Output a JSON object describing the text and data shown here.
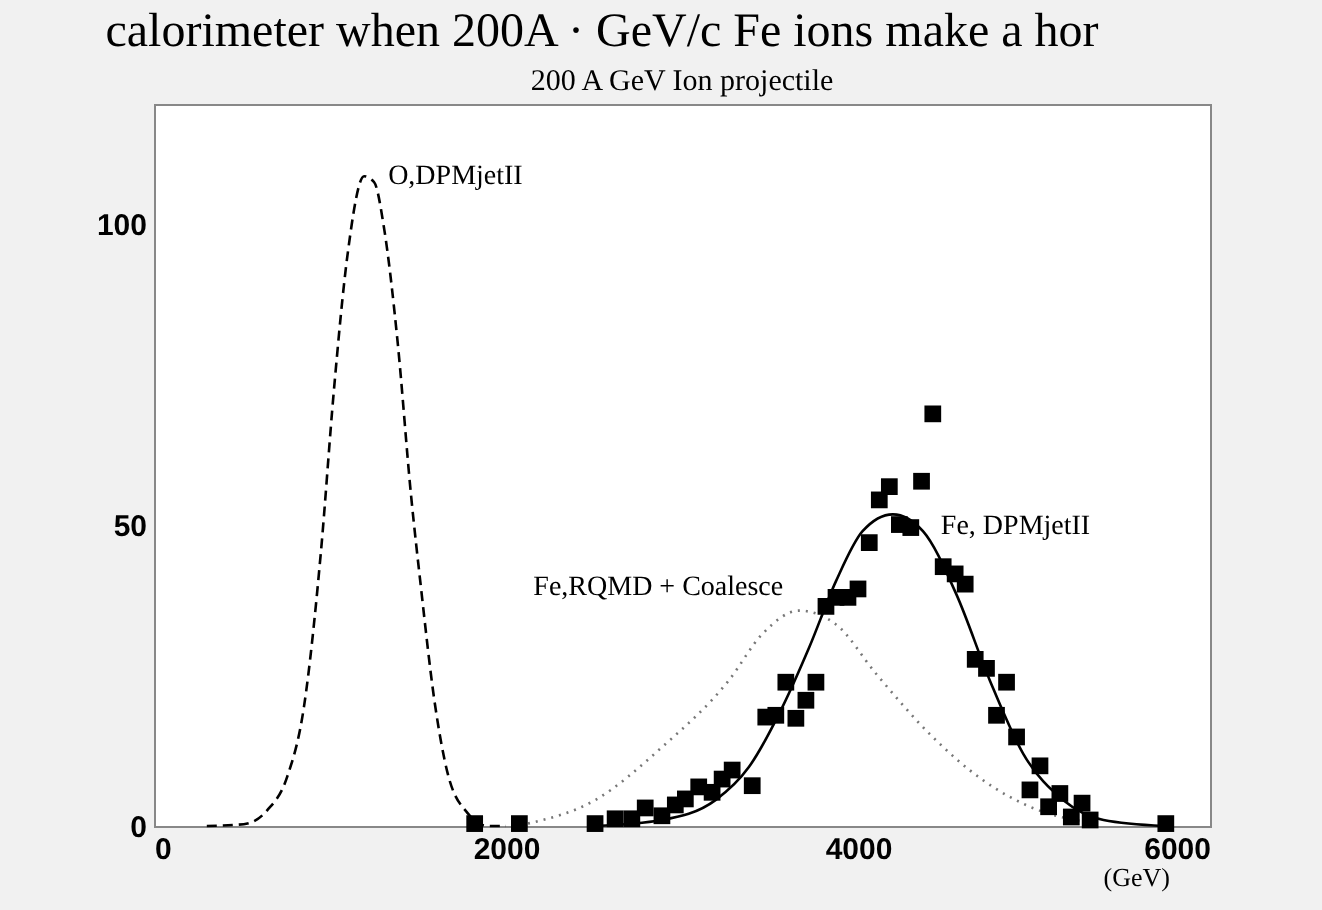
{
  "chart_data": {
    "type": "line",
    "title": "200 A GeV Ion projectile",
    "xlabel": "(GeV)",
    "xlim": [
      0,
      6000
    ],
    "ylim": [
      0,
      120
    ],
    "xticks": [
      0,
      2000,
      4000,
      6000
    ],
    "yticks": [
      0,
      50,
      100
    ],
    "grid": false,
    "annotations": [
      "calorimeter when 200A · GeV/c Fe ions make a hor"
    ],
    "series": [
      {
        "type": "line",
        "name": "O,DPMjetII",
        "color": "#000000",
        "line_style": "dashed",
        "x": [
          300,
          510,
          643,
          757,
          852,
          947,
          1023,
          1099,
          1194,
          1251,
          1308,
          1384,
          1460,
          1517,
          1593,
          1669,
          1783,
          1897,
          2000
        ],
        "values": [
          0,
          0.3,
          2.6,
          8.2,
          19.8,
          45.1,
          72.7,
          94.8,
          108,
          107,
          99.2,
          80.5,
          55.1,
          39.6,
          20.9,
          8.7,
          2.1,
          0,
          0
        ]
      },
      {
        "type": "line",
        "name": "Fe,RQMD + Coalesce",
        "color": "#777777",
        "line_style": "dotted",
        "x": [
          2125,
          2506,
          2886,
          3266,
          3456,
          3666,
          3875,
          4103,
          4407,
          4711,
          4977,
          5357
        ],
        "values": [
          0.4,
          4.3,
          13.1,
          24.2,
          31.9,
          35.8,
          33.5,
          25.3,
          15.3,
          7.6,
          3.2,
          0.4
        ]
      },
      {
        "type": "line",
        "name": "Fe, DPMjetII",
        "color": "#000000",
        "line_style": "solid",
        "x": [
          2506,
          2886,
          3190,
          3380,
          3571,
          3723,
          3875,
          4026,
          4198,
          4369,
          4559,
          4749,
          4939,
          5167,
          5395,
          5737
        ],
        "values": [
          0,
          1.0,
          4.3,
          9.8,
          19.8,
          29.7,
          40.7,
          49,
          51.8,
          49,
          38.5,
          24.2,
          12,
          4.3,
          1.0,
          0
        ]
      },
      {
        "type": "scatter",
        "color": "#000000",
        "marker": "square",
        "x": [
          1822,
          2076,
          2506,
          2620,
          2715,
          2791,
          2886,
          2962,
          3019,
          3095,
          3171,
          3228,
          3285,
          3399,
          3476,
          3533,
          3590,
          3647,
          3704,
          3761,
          3818,
          3875,
          3943,
          4000,
          4064,
          4121,
          4178,
          4235,
          4300,
          4361,
          4425,
          4484,
          4552,
          4609,
          4666,
          4730,
          4787,
          4844,
          4901,
          4977,
          5034,
          5083,
          5147,
          5212,
          5273,
          5319,
          5749
        ],
        "values": [
          0.4,
          0.4,
          0.4,
          1.2,
          1.2,
          3.0,
          1.7,
          3.5,
          4.5,
          6.5,
          5.6,
          7.8,
          9.3,
          6.7,
          18.1,
          18.4,
          23.9,
          17.9,
          20.9,
          23.9,
          36.5,
          38,
          38,
          39.4,
          47.1,
          54.2,
          56.4,
          50.1,
          49.6,
          57.3,
          68.5,
          43.1,
          41.9,
          40.2,
          27.7,
          26.2,
          18.4,
          23.9,
          14.8,
          6.0,
          10.0,
          3.2,
          5.4,
          1.5,
          3.8,
          1.0,
          0.4
        ]
      }
    ]
  }
}
